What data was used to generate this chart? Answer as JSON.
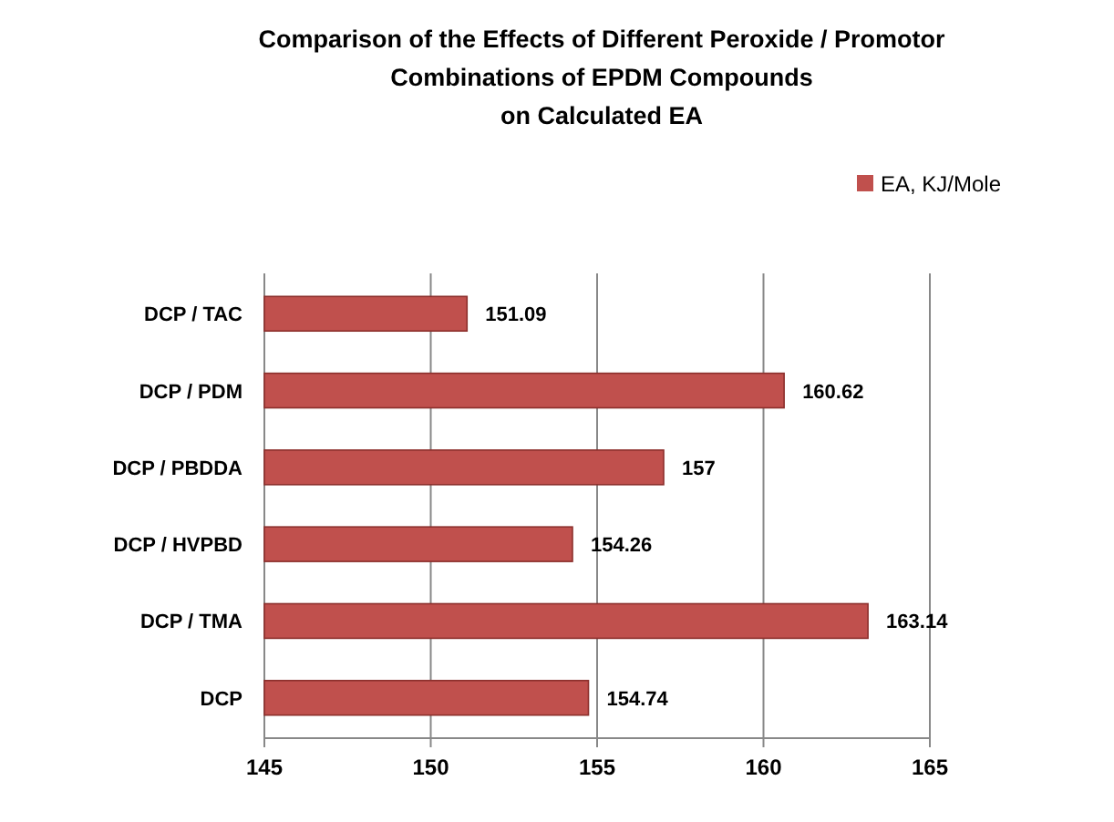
{
  "chart_data": {
    "type": "bar",
    "orientation": "horizontal",
    "title": "Comparison of the Effects of Different Peroxide / Promotor\nCombinations of EPDM Compounds\non Calculated EA",
    "categories": [
      "DCP / TAC",
      "DCP / PDM",
      "DCP / PBDDA",
      "DCP / HVPBD",
      "DCP / TMA",
      "DCP"
    ],
    "series": [
      {
        "name": "EA, KJ/Mole",
        "color": "#c0504d",
        "values": [
          151.09,
          160.62,
          157,
          154.26,
          163.14,
          154.74
        ]
      }
    ],
    "xlim": [
      145,
      165
    ],
    "xticks": [
      145,
      150,
      155,
      160,
      165
    ],
    "grid": "x",
    "legend": "top right",
    "data_labels": true
  }
}
